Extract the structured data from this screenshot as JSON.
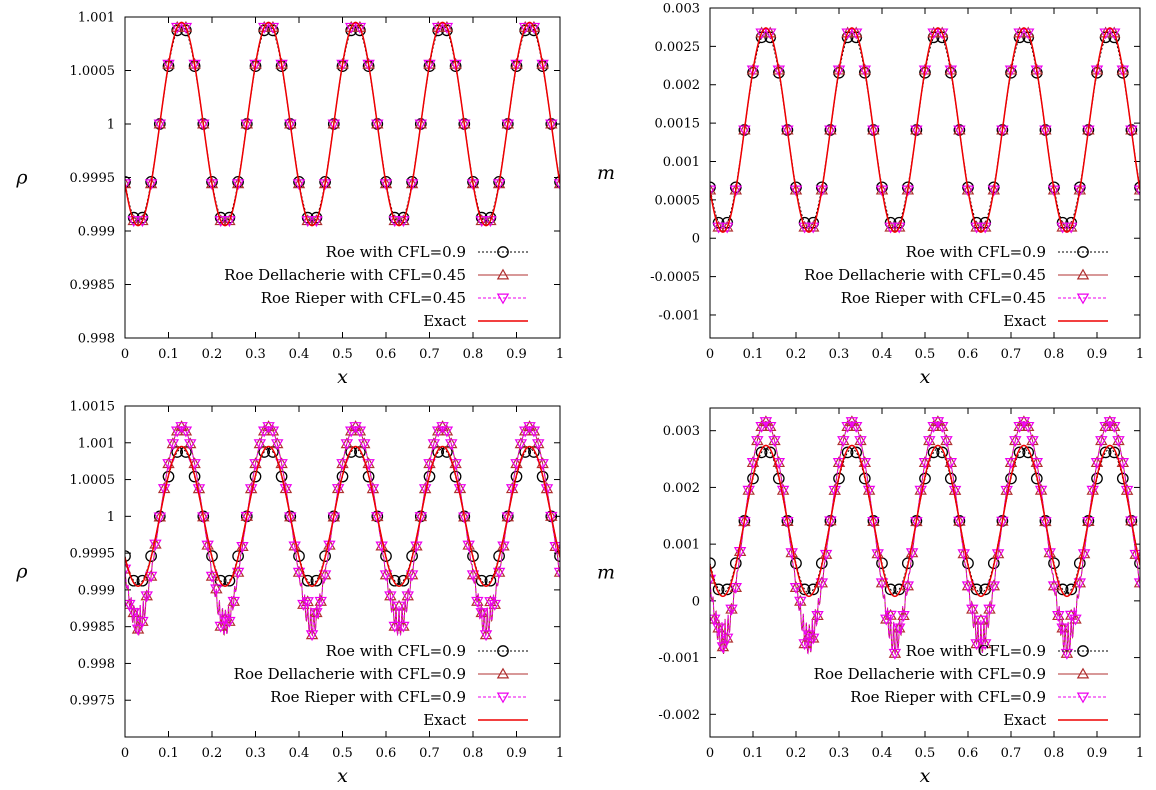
{
  "chart_data": [
    {
      "type": "line",
      "panel": "top-left",
      "xlabel": "x",
      "ylabel": "ρ",
      "xlim": [
        0,
        1
      ],
      "ylim": [
        0.998,
        1.001
      ],
      "xticks": [
        0,
        0.1,
        0.2,
        0.3,
        0.4,
        0.5,
        0.6,
        0.7,
        0.8,
        0.9,
        1
      ],
      "xtick_labels": [
        "0",
        "0.1",
        "0.2",
        "0.3",
        "0.4",
        "0.5",
        "0.6",
        "0.7",
        "0.8",
        "0.9",
        "1"
      ],
      "yticks": [
        0.998,
        0.9985,
        0.999,
        0.9995,
        1,
        1.0005,
        1.001
      ],
      "ytick_labels": [
        "0.998",
        "0.9985",
        "0.999",
        "0.9995",
        "1",
        "1.0005",
        "1.001"
      ],
      "legend_position": "bottom-right",
      "series": [
        {
          "name": "Roe with CFL=0.9",
          "color": "#000000",
          "marker": "circle",
          "amplitude": 0.00092,
          "offset": 1.0,
          "phase_shift": 0.0
        },
        {
          "name": "Roe Dellacherie with CFL=0.45",
          "color": "#b03030",
          "marker": "triangle-up",
          "amplitude": 0.00095,
          "offset": 1.0,
          "phase_shift": 0.0
        },
        {
          "name": "Roe Rieper with CFL=0.45",
          "color": "#ee00ee",
          "marker": "triangle-down",
          "amplitude": 0.00095,
          "offset": 1.0,
          "phase_shift": 0.0
        },
        {
          "name": "Exact",
          "color": "#ee0000",
          "marker": "none",
          "amplitude": 0.00095,
          "offset": 1.0,
          "phase_shift": 0.0
        }
      ]
    },
    {
      "type": "line",
      "panel": "top-right",
      "xlabel": "x",
      "ylabel": "m",
      "xlim": [
        0,
        1
      ],
      "ylim": [
        -0.0013,
        0.003
      ],
      "xticks": [
        0,
        0.1,
        0.2,
        0.3,
        0.4,
        0.5,
        0.6,
        0.7,
        0.8,
        0.9,
        1
      ],
      "xtick_labels": [
        "0",
        "0.1",
        "0.2",
        "0.3",
        "0.4",
        "0.5",
        "0.6",
        "0.7",
        "0.8",
        "0.9",
        "1"
      ],
      "yticks": [
        -0.001,
        -0.0005,
        0,
        0.0005,
        0.001,
        0.0015,
        0.002,
        0.0025,
        0.003
      ],
      "ytick_labels": [
        "-0.001",
        "-0.0005",
        "0",
        "0.0005",
        "0.001",
        "0.0015",
        "0.002",
        "0.0025",
        "0.003"
      ],
      "legend_position": "bottom-right",
      "series": [
        {
          "name": "Roe with CFL=0.9",
          "color": "#000000",
          "marker": "circle",
          "amplitude": 0.00127,
          "offset": 0.00141,
          "phase_shift": 0.0
        },
        {
          "name": "Roe Dellacherie with CFL=0.45",
          "color": "#b03030",
          "marker": "triangle-up",
          "amplitude": 0.00133,
          "offset": 0.00141,
          "phase_shift": 0.0
        },
        {
          "name": "Roe Rieper with CFL=0.45",
          "color": "#ee00ee",
          "marker": "triangle-down",
          "amplitude": 0.00133,
          "offset": 0.00141,
          "phase_shift": 0.0
        },
        {
          "name": "Exact",
          "color": "#ee0000",
          "marker": "none",
          "amplitude": 0.00133,
          "offset": 0.00141,
          "phase_shift": 0.0
        }
      ]
    },
    {
      "type": "line",
      "panel": "bottom-left",
      "xlabel": "x",
      "ylabel": "ρ",
      "xlim": [
        0,
        1
      ],
      "ylim": [
        0.997,
        1.0015
      ],
      "xticks": [
        0,
        0.1,
        0.2,
        0.3,
        0.4,
        0.5,
        0.6,
        0.7,
        0.8,
        0.9,
        1
      ],
      "xtick_labels": [
        "0",
        "0.1",
        "0.2",
        "0.3",
        "0.4",
        "0.5",
        "0.6",
        "0.7",
        "0.8",
        "0.9",
        "1"
      ],
      "yticks": [
        0.9975,
        0.998,
        0.9985,
        0.999,
        0.9995,
        1,
        1.0005,
        1.001,
        1.0015
      ],
      "ytick_labels": [
        "0.9975",
        "0.998",
        "0.9985",
        "0.999",
        "0.9995",
        "1",
        "1.0005",
        "1.001",
        "1.0015"
      ],
      "legend_position": "bottom-right",
      "series": [
        {
          "name": "Roe with CFL=0.9",
          "color": "#000000",
          "marker": "circle",
          "amplitude": 0.00092,
          "offset": 1.0,
          "phase_shift": 0.0
        },
        {
          "name": "Roe Dellacherie with CFL=0.9",
          "color": "#b03030",
          "marker": "triangle-up",
          "amplitude": 0.00122,
          "offset": 1.0,
          "phase_shift": 0.0,
          "oscillatory": true,
          "wiggle_amplitude": 0.0004
        },
        {
          "name": "Roe Rieper with CFL=0.9",
          "color": "#ee00ee",
          "marker": "triangle-down",
          "amplitude": 0.00122,
          "offset": 1.0,
          "phase_shift": 0.0,
          "oscillatory": true,
          "wiggle_amplitude": 0.0004
        },
        {
          "name": "Exact",
          "color": "#ee0000",
          "marker": "none",
          "amplitude": 0.00095,
          "offset": 1.0,
          "phase_shift": 0.0
        }
      ]
    },
    {
      "type": "line",
      "panel": "bottom-right",
      "xlabel": "x",
      "ylabel": "m",
      "xlim": [
        0,
        1
      ],
      "ylim": [
        -0.0024,
        0.0034
      ],
      "xticks": [
        0,
        0.1,
        0.2,
        0.3,
        0.4,
        0.5,
        0.6,
        0.7,
        0.8,
        0.9,
        1
      ],
      "xtick_labels": [
        "0",
        "0.1",
        "0.2",
        "0.3",
        "0.4",
        "0.5",
        "0.6",
        "0.7",
        "0.8",
        "0.9",
        "1"
      ],
      "yticks": [
        -0.002,
        -0.001,
        0,
        0.001,
        0.002,
        0.003
      ],
      "ytick_labels": [
        "-0.002",
        "-0.001",
        "0",
        "0.001",
        "0.002",
        "0.003"
      ],
      "legend_position": "bottom-right",
      "series": [
        {
          "name": "Roe with CFL=0.9",
          "color": "#000000",
          "marker": "circle",
          "amplitude": 0.00127,
          "offset": 0.00141,
          "phase_shift": 0.0
        },
        {
          "name": "Roe Dellacherie with CFL=0.9",
          "color": "#b03030",
          "marker": "triangle-up",
          "amplitude": 0.00175,
          "offset": 0.00141,
          "phase_shift": 0.0,
          "oscillatory": true,
          "wiggle_amplitude": 0.0006
        },
        {
          "name": "Roe Rieper with CFL=0.9",
          "color": "#ee00ee",
          "marker": "triangle-down",
          "amplitude": 0.00175,
          "offset": 0.00141,
          "phase_shift": 0.0,
          "oscillatory": true,
          "wiggle_amplitude": 0.0006
        },
        {
          "name": "Exact",
          "color": "#ee0000",
          "marker": "none",
          "amplitude": 0.00133,
          "offset": 0.00141,
          "phase_shift": 0.0
        }
      ]
    }
  ]
}
